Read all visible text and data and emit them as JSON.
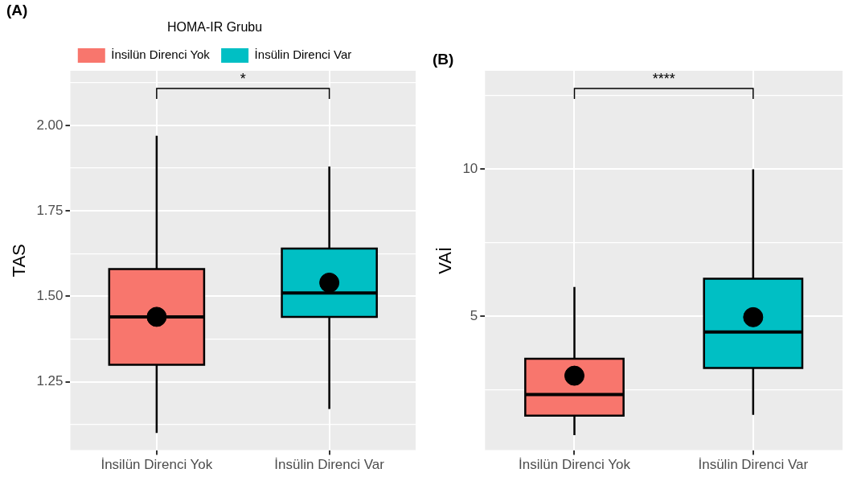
{
  "chart_data": [
    {
      "type": "box",
      "title": "(A)",
      "ylabel": "TAS",
      "legend_title": "HOMA-IR Grubu",
      "legend": "top",
      "categories": [
        "İnsilün Direnci Yok",
        "İnsülin Direnci Var"
      ],
      "series": [
        {
          "name": "İnsilün Direnci Yok",
          "color": "#f8766d",
          "boxes": [
            {
              "low": 1.1,
              "q1": 1.3,
              "median": 1.44,
              "q3": 1.58,
              "high": 1.97,
              "mean": 1.44
            },
            null
          ]
        },
        {
          "name": "İnsülin Direnci Var",
          "color": "#00bfc4",
          "boxes": [
            null,
            {
              "low": 1.17,
              "q1": 1.44,
              "median": 1.51,
              "q3": 1.64,
              "high": 1.88,
              "mean": 1.54
            }
          ]
        }
      ],
      "ylim": [
        1.05,
        2.16
      ],
      "yticks": [
        {
          "value": 1.125,
          "label": null
        },
        {
          "value": 1.25,
          "label": "1.25"
        },
        {
          "value": 1.375,
          "label": null
        },
        {
          "value": 1.5,
          "label": "1.50"
        },
        {
          "value": 1.625,
          "label": null
        },
        {
          "value": 1.75,
          "label": "1.75"
        },
        {
          "value": 1.875,
          "label": null
        },
        {
          "value": 2.0,
          "label": "2.00"
        },
        {
          "value": 2.125,
          "label": null
        }
      ],
      "grid": true,
      "annotations": [
        "*"
      ]
    },
    {
      "type": "box",
      "title": "(B)",
      "ylabel": "VAİ",
      "categories": [
        "İnsilün Direnci Yok",
        "İnsülin Direnci Var"
      ],
      "series": [
        {
          "color": "#f8766d",
          "boxes": [
            {
              "low": 0.96,
              "q1": 1.62,
              "median": 2.34,
              "q3": 3.56,
              "high": 6.0,
              "mean": 2.98
            },
            null
          ]
        },
        {
          "color": "#00bfc4",
          "boxes": [
            null,
            {
              "low": 1.65,
              "q1": 3.24,
              "median": 4.47,
              "q3": 6.28,
              "high": 10.0,
              "mean": 4.97
            }
          ]
        }
      ],
      "ylim": [
        0.45,
        13.35
      ],
      "yticks": [
        {
          "value": 2.5,
          "label": null
        },
        5,
        {
          "value": 7.5,
          "label": null
        },
        10,
        {
          "value": 12.5,
          "label": null
        }
      ],
      "grid": true,
      "annotations": [
        "****"
      ]
    }
  ]
}
